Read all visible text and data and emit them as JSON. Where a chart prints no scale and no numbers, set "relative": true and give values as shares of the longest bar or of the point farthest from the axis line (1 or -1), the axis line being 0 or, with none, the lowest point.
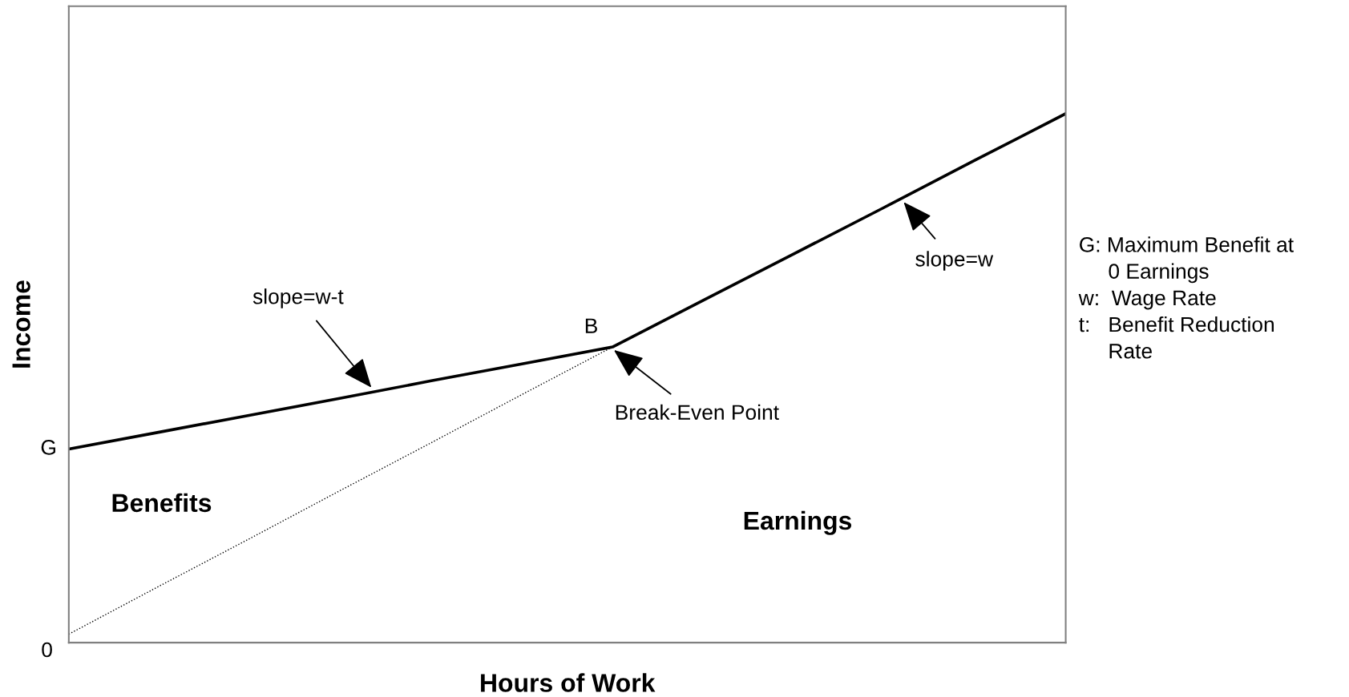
{
  "chart_data": {
    "type": "line",
    "relative": true,
    "xlabel": "Hours of Work",
    "ylabel": "Income",
    "categories": [
      null,
      null,
      null,
      null,
      null,
      null,
      null,
      null,
      null,
      null,
      null,
      null
    ],
    "series": [
      {
        "color": "#000000",
        "line_style": "solid",
        "values": [
          0.366,
          0.398,
          0.43,
          0.462,
          0.495,
          0.527,
          0.559,
          0.647,
          0.735,
          0.823,
          0.912,
          1
        ]
      },
      {
        "color": "#000000",
        "line_style": "dotted",
        "values": [
          0.016,
          0.107,
          0.197,
          0.288,
          0.378,
          0.469,
          0.559,
          null,
          null,
          null,
          null,
          null
        ]
      }
    ],
    "annotations": [
      "slope=w-t",
      "Break-Even Point",
      "slope=w",
      "B",
      "G",
      "0",
      "Benefits",
      "Earnings",
      "G: Maximum Benefit at\n     0 Earnings\nw:  Wage Rate\nt:   Benefit Reduction\n     Rate"
    ]
  }
}
